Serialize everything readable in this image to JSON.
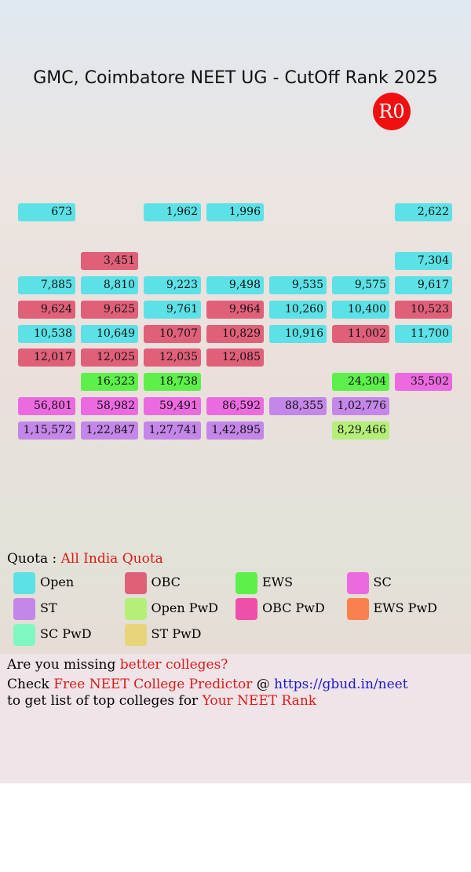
{
  "header": {
    "title": "GMC, Coimbatore NEET UG - CutOff Rank 2025",
    "round": "R0"
  },
  "grid": {
    "rows": [
      [
        {
          "rank": "673",
          "color": "#5ce1e6"
        },
        null,
        {
          "rank": "1,962",
          "color": "#5ce1e6"
        },
        {
          "rank": "1,996",
          "color": "#5ce1e6"
        },
        null,
        null,
        {
          "rank": "2,622",
          "color": "#5ce1e6"
        }
      ],
      [
        null,
        null,
        null,
        null,
        null,
        null,
        null
      ],
      [
        null,
        {
          "rank": "3,451",
          "color": "#e0607a"
        },
        null,
        null,
        null,
        null,
        {
          "rank": "7,304",
          "color": "#5ce1e6"
        }
      ],
      [
        {
          "rank": "7,885",
          "color": "#5ce1e6"
        },
        {
          "rank": "8,810",
          "color": "#5ce1e6"
        },
        {
          "rank": "9,223",
          "color": "#5ce1e6"
        },
        {
          "rank": "9,498",
          "color": "#5ce1e6"
        },
        {
          "rank": "9,535",
          "color": "#5ce1e6"
        },
        {
          "rank": "9,575",
          "color": "#5ce1e6"
        },
        {
          "rank": "9,617",
          "color": "#5ce1e6"
        }
      ],
      [
        {
          "rank": "9,624",
          "color": "#e0607a"
        },
        {
          "rank": "9,625",
          "color": "#e0607a"
        },
        {
          "rank": "9,761",
          "color": "#5ce1e6"
        },
        {
          "rank": "9,964",
          "color": "#e0607a"
        },
        {
          "rank": "10,260",
          "color": "#5ce1e6"
        },
        {
          "rank": "10,400",
          "color": "#5ce1e6"
        },
        {
          "rank": "10,523",
          "color": "#e0607a"
        }
      ],
      [
        {
          "rank": "10,538",
          "color": "#5ce1e6"
        },
        {
          "rank": "10,649",
          "color": "#5ce1e6"
        },
        {
          "rank": "10,707",
          "color": "#e0607a"
        },
        {
          "rank": "10,829",
          "color": "#e0607a"
        },
        {
          "rank": "10,916",
          "color": "#5ce1e6"
        },
        {
          "rank": "11,002",
          "color": "#e0607a"
        },
        {
          "rank": "11,700",
          "color": "#5ce1e6"
        }
      ],
      [
        {
          "rank": "12,017",
          "color": "#e0607a"
        },
        {
          "rank": "12,025",
          "color": "#e0607a"
        },
        {
          "rank": "12,035",
          "color": "#e0607a"
        },
        {
          "rank": "12,085",
          "color": "#e0607a"
        },
        null,
        null,
        null
      ],
      [
        null,
        {
          "rank": "16,323",
          "color": "#5ef04a"
        },
        {
          "rank": "18,738",
          "color": "#5ef04a"
        },
        null,
        null,
        {
          "rank": "24,304",
          "color": "#5ef04a"
        },
        {
          "rank": "35,502",
          "color": "#ec6ae0"
        }
      ],
      [
        {
          "rank": "56,801",
          "color": "#ec6ae0"
        },
        {
          "rank": "58,982",
          "color": "#ec6ae0"
        },
        {
          "rank": "59,491",
          "color": "#ec6ae0"
        },
        {
          "rank": "86,592",
          "color": "#ec6ae0"
        },
        {
          "rank": "88,355",
          "color": "#c486e8"
        },
        {
          "rank": "1,02,776",
          "color": "#c486e8"
        },
        null
      ],
      [
        {
          "rank": "1,15,572",
          "color": "#c486e8"
        },
        {
          "rank": "1,22,847",
          "color": "#c486e8"
        },
        {
          "rank": "1,27,741",
          "color": "#c486e8"
        },
        {
          "rank": "1,42,895",
          "color": "#c486e8"
        },
        null,
        {
          "rank": "8,29,466",
          "color": "#b6ee7a"
        },
        null
      ]
    ]
  },
  "quota": {
    "label": "Quota :",
    "value": "All India Quota"
  },
  "legend": [
    {
      "name": "Open",
      "color": "#5ce1e6"
    },
    {
      "name": "OBC",
      "color": "#e0607a"
    },
    {
      "name": "EWS",
      "color": "#5ef04a"
    },
    {
      "name": "SC",
      "color": "#ec6ae0"
    },
    {
      "name": "ST",
      "color": "#c486e8"
    },
    {
      "name": "Open PwD",
      "color": "#b6ee7a"
    },
    {
      "name": "OBC PwD",
      "color": "#ee4fa8"
    },
    {
      "name": "EWS PwD",
      "color": "#fb8050"
    },
    {
      "name": "SC PwD",
      "color": "#7ff7c0"
    },
    {
      "name": "ST PwD",
      "color": "#e8d47a"
    }
  ],
  "footer": {
    "line1": [
      "Are you missing ",
      "better colleges?"
    ],
    "line2": [
      "Check ",
      "Free NEET College Predictor",
      " @ ",
      "https://gbud.in/neet"
    ],
    "line3": [
      "to get list of top colleges for ",
      "Your NEET Rank"
    ]
  }
}
